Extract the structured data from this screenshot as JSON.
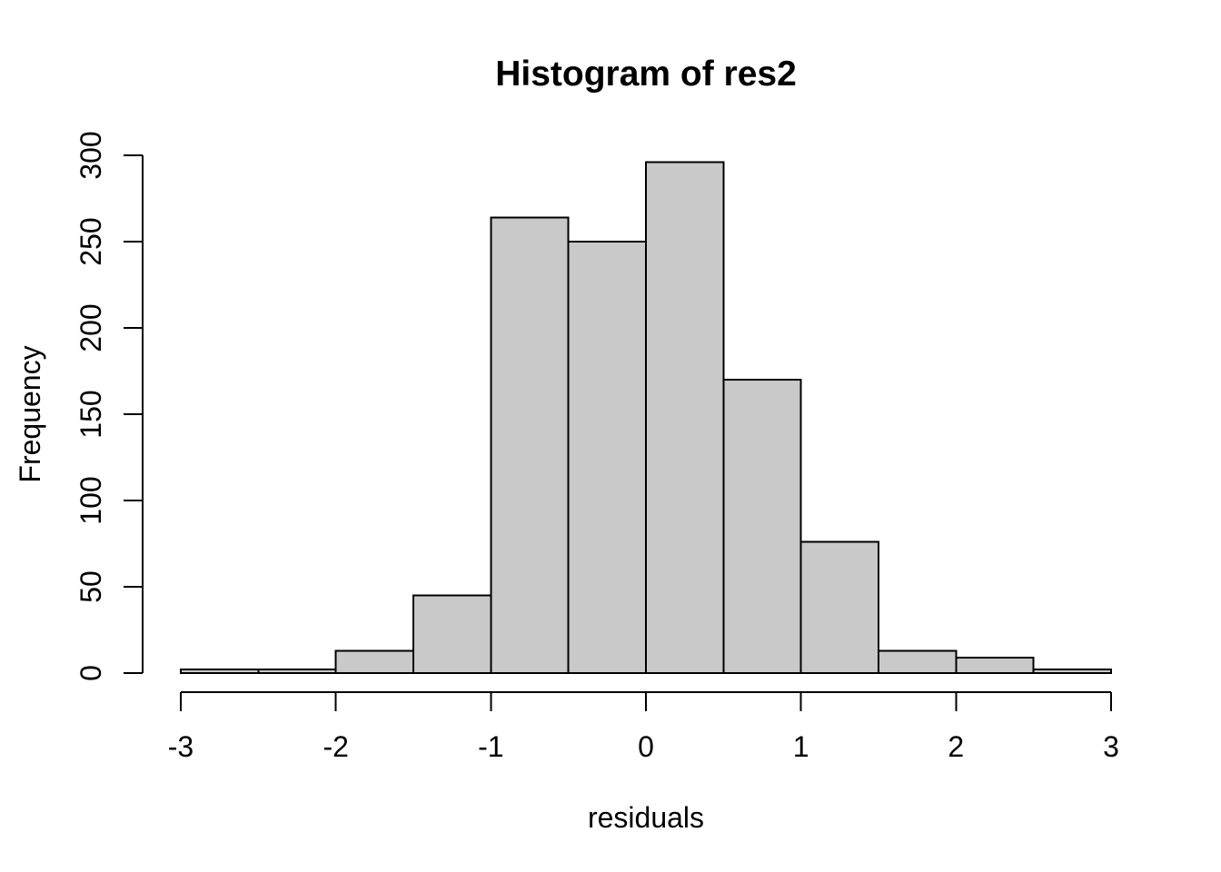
{
  "chart_data": {
    "type": "bar",
    "subtype": "histogram",
    "title": "Histogram of res2",
    "xlabel": "residuals",
    "ylabel": "Frequency",
    "breaks": [
      -3,
      -2.5,
      -2,
      -1.5,
      -1,
      -0.5,
      0,
      0.5,
      1,
      1.5,
      2,
      2.5,
      3
    ],
    "counts": [
      2,
      2,
      13,
      45,
      264,
      250,
      296,
      170,
      76,
      13,
      9,
      2
    ],
    "x_ticks": [
      -3,
      -2,
      -1,
      0,
      1,
      2,
      3
    ],
    "x_tick_labels": [
      "-3",
      "-2",
      "-1",
      "0",
      "1",
      "2",
      "3"
    ],
    "y_ticks": [
      0,
      50,
      100,
      150,
      200,
      250,
      300
    ],
    "y_tick_labels": [
      "0",
      "50",
      "100",
      "150",
      "200",
      "250",
      "300"
    ],
    "xlim": [
      -3,
      3
    ],
    "ylim": [
      0,
      300
    ],
    "grid": false,
    "legend": null,
    "colors": {
      "bar_fill": "#C9C9C9",
      "bar_stroke": "#000000",
      "axis": "#000000",
      "text": "#000000",
      "background": "#FFFFFF"
    }
  }
}
